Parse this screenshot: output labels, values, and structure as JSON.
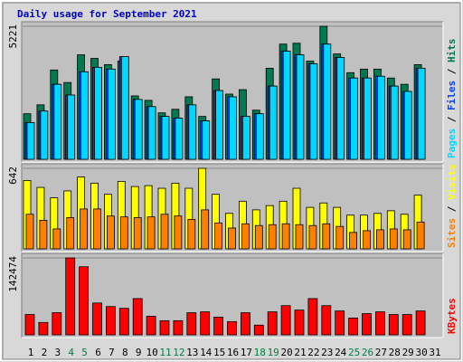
{
  "chart_data": [
    {
      "type": "bar",
      "title": "Daily usage for September 2021",
      "legend_separator": " / ",
      "ylim": [
        0,
        5221
      ],
      "yticks": [
        5221
      ],
      "series": [
        {
          "name": "Hits",
          "color": "#007850",
          "values": [
            1787,
            2137,
            3504,
            3013,
            4100,
            3960,
            3714,
            3854,
            2488,
            2313,
            1822,
            1962,
            2453,
            1682,
            3154,
            2558,
            2733,
            1927,
            3574,
            4520,
            4555,
            3854,
            5221,
            4135,
            3399,
            3539,
            3539,
            3189,
            2943,
            3714,
            null
          ]
        },
        {
          "name": "Files",
          "color": "#0040ff",
          "values": [
            1437,
            1892,
            2943,
            2523,
            3434,
            3609,
            3539,
            4030,
            2348,
            2067,
            1682,
            1612,
            2137,
            1507,
            2698,
            2453,
            1682,
            1787,
            2873,
            4240,
            4100,
            3749,
            4520,
            3995,
            3189,
            3189,
            3259,
            2873,
            2663,
            3574,
            null
          ]
        },
        {
          "name": "Pages",
          "color": "#00d8ff",
          "values": [
            1437,
            1892,
            2943,
            2523,
            3434,
            3609,
            3539,
            4030,
            2348,
            2067,
            1682,
            1612,
            2137,
            1507,
            2698,
            2453,
            1682,
            1787,
            2873,
            4240,
            4100,
            3749,
            4520,
            3995,
            3189,
            3189,
            3259,
            2873,
            2663,
            3574,
            null
          ]
        }
      ]
    },
    {
      "type": "bar",
      "legend_separator": " / ",
      "ylim": [
        0,
        642
      ],
      "yticks": [
        642
      ],
      "series": [
        {
          "name": "Visits",
          "color": "#ffff00",
          "values": [
            545,
            490,
            407,
            462,
            573,
            524,
            435,
            538,
            497,
            504,
            483,
            524,
            483,
            642,
            435,
            283,
            380,
            311,
            345,
            380,
            483,
            331,
            366,
            331,
            269,
            269,
            283,
            304,
            276,
            428,
            null
          ]
        },
        {
          "name": "Sites",
          "color": "#ff8000",
          "values": [
            276,
            228,
            159,
            249,
            318,
            318,
            262,
            255,
            249,
            255,
            276,
            262,
            235,
            311,
            207,
            166,
            200,
            186,
            193,
            200,
            193,
            186,
            200,
            179,
            131,
            145,
            152,
            159,
            152,
            214,
            null
          ]
        }
      ]
    },
    {
      "type": "bar",
      "ylim": [
        0,
        142474
      ],
      "yticks": [
        142474
      ],
      "categories": [
        "1",
        "2",
        "3",
        "4",
        "5",
        "6",
        "7",
        "8",
        "9",
        "10",
        "11",
        "12",
        "13",
        "14",
        "15",
        "16",
        "17",
        "18",
        "19",
        "20",
        "21",
        "22",
        "23",
        "24",
        "25",
        "26",
        "27",
        "28",
        "29",
        "30",
        "31"
      ],
      "category_colors": [
        "#000000",
        "#000000",
        "#000000",
        "#008040",
        "#008040",
        "#000000",
        "#000000",
        "#000000",
        "#000000",
        "#000000",
        "#008040",
        "#008040",
        "#000000",
        "#000000",
        "#000000",
        "#000000",
        "#000000",
        "#008040",
        "#008040",
        "#000000",
        "#000000",
        "#000000",
        "#000000",
        "#000000",
        "#008040",
        "#008040",
        "#000000",
        "#000000",
        "#000000",
        "#000000",
        "#000000"
      ],
      "series": [
        {
          "name": "KBytes",
          "color": "#ff0000",
          "values": [
            37674,
            22932,
            40950,
            142474,
            126126,
            58968,
            52416,
            49140,
            67158,
            34398,
            26208,
            26208,
            40950,
            42588,
            32760,
            24570,
            40950,
            18018,
            42588,
            54054,
            45864,
            67158,
            54054,
            44226,
            31122,
            39312,
            42588,
            37674,
            37674,
            44226,
            null
          ]
        }
      ]
    }
  ]
}
